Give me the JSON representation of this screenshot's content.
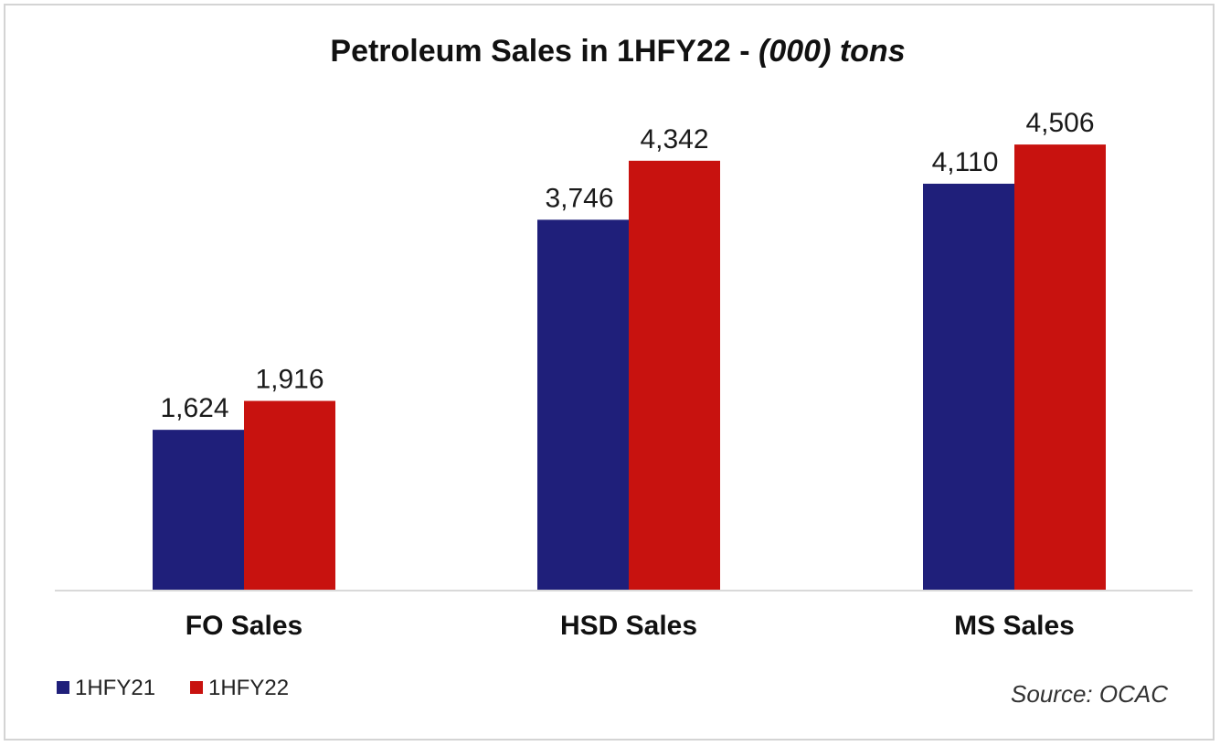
{
  "chart_data": {
    "type": "bar",
    "title": "Petroleum Sales in 1HFY22 - ",
    "title_unit": "(000) tons",
    "categories": [
      "FO Sales",
      "HSD Sales",
      "MS Sales"
    ],
    "series": [
      {
        "name": "1HFY21",
        "color": "#1f1f7a",
        "values": [
          1624,
          3746,
          4110
        ],
        "labels": [
          "1,624",
          "3,746",
          "4,110"
        ]
      },
      {
        "name": "1HFY22",
        "color": "#c8120f",
        "values": [
          1916,
          4342,
          4506
        ],
        "labels": [
          "1,916",
          "4,342",
          "4,506"
        ]
      }
    ],
    "xlabel": "",
    "ylabel": "",
    "ylim": [
      0,
      4950
    ],
    "grid": false,
    "legend_position": "bottom-left",
    "source": "Source: OCAC"
  }
}
